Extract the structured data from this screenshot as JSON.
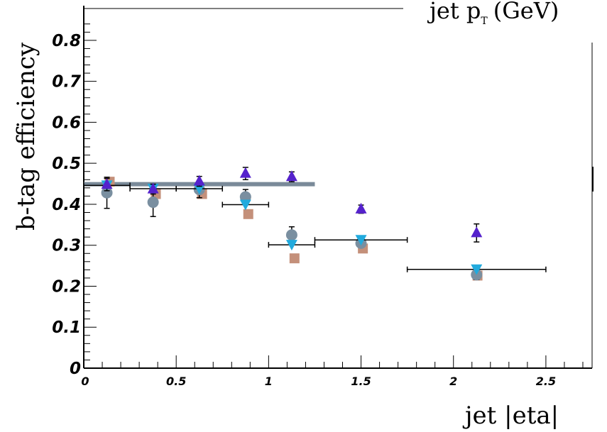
{
  "chart_data": {
    "type": "scatter",
    "title": "",
    "xlabel": "jet |eta|",
    "ylabel": "b-tag efficiency",
    "top_label": "jet p",
    "top_label_sub": "T",
    "top_label_unit": "(GeV)",
    "xlim": [
      0,
      2.75
    ],
    "ylim": [
      0,
      0.85
    ],
    "x_ticks": [
      "0",
      "0.5",
      "1",
      "1.5",
      "2",
      "2.5"
    ],
    "x_tick_values": [
      0,
      0.5,
      1,
      1.5,
      2,
      2.5
    ],
    "y_ticks": [
      "0",
      "0.1",
      "0.2",
      "0.3",
      "0.4",
      "0.5",
      "0.6",
      "0.7",
      "0.8"
    ],
    "y_tick_values": [
      0,
      0.1,
      0.2,
      0.3,
      0.4,
      0.5,
      0.6,
      0.7,
      0.8
    ],
    "reference_line": {
      "x": [
        0,
        1.25
      ],
      "y": 0.449,
      "color": "#7a8a99"
    },
    "series": [
      {
        "marker": "triangle-up",
        "color": "#5522cc",
        "points": [
          {
            "x": 0.125,
            "y": 0.448,
            "err": 0.015
          },
          {
            "x": 0.375,
            "y": 0.437,
            "err": 0.012
          },
          {
            "x": 0.625,
            "y": 0.456,
            "err": 0.012
          },
          {
            "x": 0.875,
            "y": 0.475,
            "err": 0.015
          },
          {
            "x": 1.125,
            "y": 0.467,
            "err": 0.012
          },
          {
            "x": 1.5,
            "y": 0.388,
            "err": 0.01
          },
          {
            "x": 2.125,
            "y": 0.33,
            "err": 0.022
          }
        ]
      },
      {
        "marker": "circle",
        "color": "#7a8fa0",
        "points": [
          {
            "x": 0.125,
            "y": 0.428,
            "err": 0.038
          },
          {
            "x": 0.375,
            "y": 0.405,
            "err": 0.035
          },
          {
            "x": 0.625,
            "y": 0.436,
            "err": 0.02
          },
          {
            "x": 0.875,
            "y": 0.418,
            "err": 0.018
          },
          {
            "x": 1.125,
            "y": 0.325,
            "err": 0.02
          },
          {
            "x": 1.5,
            "y": 0.305,
            "err": 0.01
          },
          {
            "x": 2.125,
            "y": 0.228,
            "err": 0.012
          }
        ]
      },
      {
        "marker": "square",
        "color": "#c4907a",
        "points": [
          {
            "x": 0.14,
            "y": 0.455
          },
          {
            "x": 0.39,
            "y": 0.425
          },
          {
            "x": 0.64,
            "y": 0.425
          },
          {
            "x": 0.89,
            "y": 0.376
          },
          {
            "x": 1.14,
            "y": 0.268
          },
          {
            "x": 1.51,
            "y": 0.292
          },
          {
            "x": 2.13,
            "y": 0.226
          }
        ]
      },
      {
        "marker": "triangle-down",
        "color": "#22aadd",
        "points": [
          {
            "x": 0.125,
            "y": 0.446,
            "xerr": 0.125
          },
          {
            "x": 0.375,
            "y": 0.438,
            "xerr": 0.125
          },
          {
            "x": 0.625,
            "y": 0.438,
            "xerr": 0.125
          },
          {
            "x": 0.875,
            "y": 0.399,
            "xerr": 0.125
          },
          {
            "x": 1.125,
            "y": 0.301,
            "xerr": 0.125
          },
          {
            "x": 1.5,
            "y": 0.313,
            "xerr": 0.25
          },
          {
            "x": 2.125,
            "y": 0.241,
            "xerr": 0.375
          }
        ]
      }
    ]
  }
}
